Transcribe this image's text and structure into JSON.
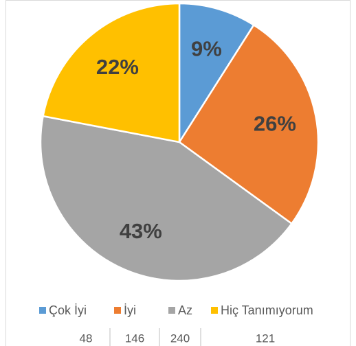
{
  "chart_data": {
    "type": "pie",
    "categories": [
      "Çok İyi",
      "İyi",
      "Az",
      "Hiç Tanımıyorum"
    ],
    "values": [
      9,
      26,
      43,
      22
    ],
    "value_labels": [
      "9%",
      "26%",
      "43%",
      "22%"
    ],
    "colors": [
      "#5b9bd5",
      "#ed7d31",
      "#a5a5a5",
      "#ffc000"
    ],
    "counts": [
      48,
      146,
      240,
      121
    ],
    "legend": "bottom"
  }
}
